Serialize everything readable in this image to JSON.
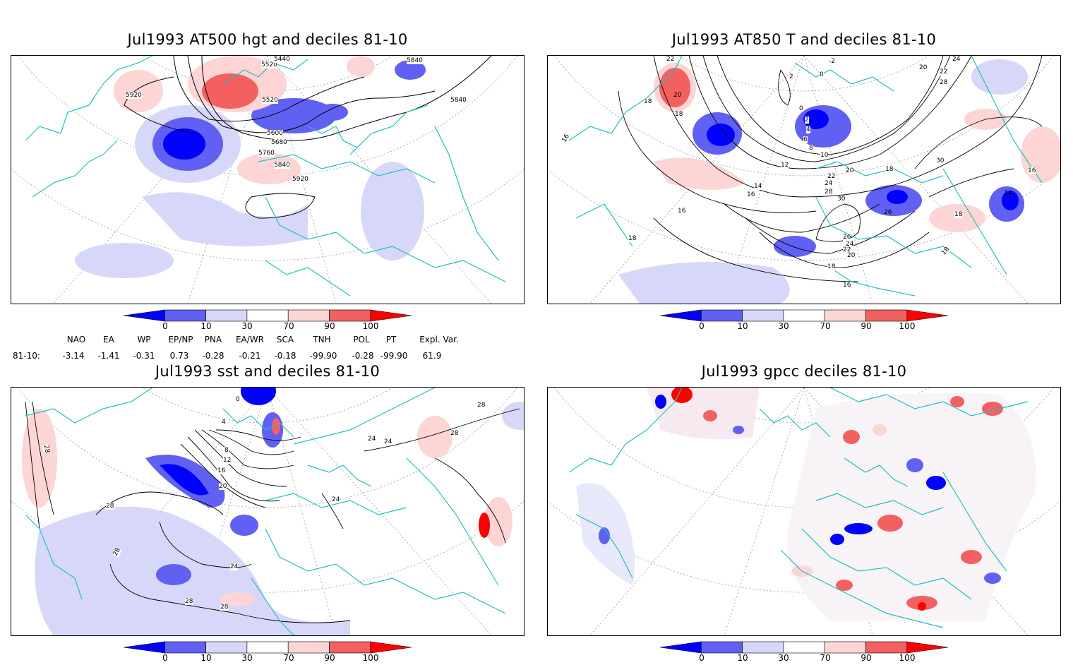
{
  "panels": [
    {
      "title": "Jul1993 AT500 hgt and deciles 81-10",
      "contour_labels": [
        "5840",
        "5920",
        "5520",
        "5440",
        "5520",
        "5840",
        "5600",
        "5680",
        "5760",
        "5840",
        "5920"
      ]
    },
    {
      "title": "Jul1993 AT850 T and deciles 81-10",
      "contour_labels": [
        "22",
        "20",
        "18",
        "18",
        "-2",
        "2",
        "0",
        "24",
        "20",
        "22",
        "28",
        "0",
        "2",
        "4",
        "6",
        "8",
        "10",
        "12",
        "14",
        "16",
        "20",
        "22",
        "24",
        "28",
        "30",
        "18",
        "16",
        "30",
        "16",
        "26",
        "18",
        "14",
        "16",
        "18",
        "26",
        "24",
        "22",
        "20",
        "18",
        "16",
        "18"
      ]
    },
    {
      "title": "Jul1993 sst and deciles 81-10",
      "contour_labels": [
        "28",
        "28",
        "28",
        "28",
        "24",
        "24",
        "24",
        "28",
        "0",
        "4",
        "8",
        "12",
        "16",
        "20",
        "24",
        "28",
        "28"
      ]
    },
    {
      "title": "Jul1993 gpcc deciles 81-10",
      "contour_labels": []
    }
  ],
  "colorbar": {
    "ticks": [
      "0",
      "10",
      "30",
      "70",
      "90",
      "100"
    ],
    "colors": [
      "#0000ff",
      "#6060f2",
      "#d7d7fa",
      "#ffffff",
      "#fdd5d5",
      "#f26060",
      "#ff0000"
    ]
  },
  "indices": {
    "row_label": "81-10:",
    "columns": [
      {
        "name": "NAO",
        "value": "-3.14"
      },
      {
        "name": "EA",
        "value": "-1.41"
      },
      {
        "name": "WP",
        "value": "-0.31"
      },
      {
        "name": "EP/NP",
        "value": "0.73"
      },
      {
        "name": "PNA",
        "value": "-0.28"
      },
      {
        "name": "EA/WR",
        "value": "-0.21"
      },
      {
        "name": "SCA",
        "value": "-0.18"
      },
      {
        "name": "TNH",
        "value": "-99.90"
      },
      {
        "name": "POL",
        "value": "-0.28"
      },
      {
        "name": "PT",
        "value": "-99.90"
      },
      {
        "name": "Expl. Var.",
        "value": "61.9"
      }
    ]
  }
}
